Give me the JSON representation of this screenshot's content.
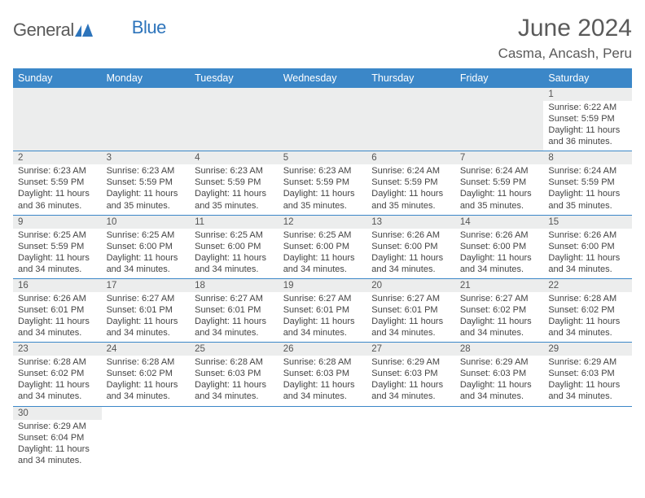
{
  "logo": {
    "general": "General",
    "blue": "Blue"
  },
  "title": "June 2024",
  "location": "Casma, Ancash, Peru",
  "days_of_week": [
    "Sunday",
    "Monday",
    "Tuesday",
    "Wednesday",
    "Thursday",
    "Friday",
    "Saturday"
  ],
  "colors": {
    "header_bg": "#3b87c8",
    "header_text": "#ffffff",
    "daynum_bg": "#eceded",
    "border": "#3b87c8",
    "title_text": "#5a5a5a",
    "body_text": "#444444",
    "logo_blue": "#2d74bb",
    "logo_gray": "#5a5a5a"
  },
  "typography": {
    "title_fontsize": 30,
    "location_fontsize": 17,
    "dayhead_fontsize": 12.5,
    "daynum_fontsize": 11.5,
    "content_fontsize": 11
  },
  "layout": {
    "first_day_column": 6,
    "total_days": 30
  },
  "entries": {
    "1": {
      "sunrise": "Sunrise: 6:22 AM",
      "sunset": "Sunset: 5:59 PM",
      "d1": "Daylight: 11 hours",
      "d2": "and 36 minutes."
    },
    "2": {
      "sunrise": "Sunrise: 6:23 AM",
      "sunset": "Sunset: 5:59 PM",
      "d1": "Daylight: 11 hours",
      "d2": "and 36 minutes."
    },
    "3": {
      "sunrise": "Sunrise: 6:23 AM",
      "sunset": "Sunset: 5:59 PM",
      "d1": "Daylight: 11 hours",
      "d2": "and 35 minutes."
    },
    "4": {
      "sunrise": "Sunrise: 6:23 AM",
      "sunset": "Sunset: 5:59 PM",
      "d1": "Daylight: 11 hours",
      "d2": "and 35 minutes."
    },
    "5": {
      "sunrise": "Sunrise: 6:23 AM",
      "sunset": "Sunset: 5:59 PM",
      "d1": "Daylight: 11 hours",
      "d2": "and 35 minutes."
    },
    "6": {
      "sunrise": "Sunrise: 6:24 AM",
      "sunset": "Sunset: 5:59 PM",
      "d1": "Daylight: 11 hours",
      "d2": "and 35 minutes."
    },
    "7": {
      "sunrise": "Sunrise: 6:24 AM",
      "sunset": "Sunset: 5:59 PM",
      "d1": "Daylight: 11 hours",
      "d2": "and 35 minutes."
    },
    "8": {
      "sunrise": "Sunrise: 6:24 AM",
      "sunset": "Sunset: 5:59 PM",
      "d1": "Daylight: 11 hours",
      "d2": "and 35 minutes."
    },
    "9": {
      "sunrise": "Sunrise: 6:25 AM",
      "sunset": "Sunset: 5:59 PM",
      "d1": "Daylight: 11 hours",
      "d2": "and 34 minutes."
    },
    "10": {
      "sunrise": "Sunrise: 6:25 AM",
      "sunset": "Sunset: 6:00 PM",
      "d1": "Daylight: 11 hours",
      "d2": "and 34 minutes."
    },
    "11": {
      "sunrise": "Sunrise: 6:25 AM",
      "sunset": "Sunset: 6:00 PM",
      "d1": "Daylight: 11 hours",
      "d2": "and 34 minutes."
    },
    "12": {
      "sunrise": "Sunrise: 6:25 AM",
      "sunset": "Sunset: 6:00 PM",
      "d1": "Daylight: 11 hours",
      "d2": "and 34 minutes."
    },
    "13": {
      "sunrise": "Sunrise: 6:26 AM",
      "sunset": "Sunset: 6:00 PM",
      "d1": "Daylight: 11 hours",
      "d2": "and 34 minutes."
    },
    "14": {
      "sunrise": "Sunrise: 6:26 AM",
      "sunset": "Sunset: 6:00 PM",
      "d1": "Daylight: 11 hours",
      "d2": "and 34 minutes."
    },
    "15": {
      "sunrise": "Sunrise: 6:26 AM",
      "sunset": "Sunset: 6:00 PM",
      "d1": "Daylight: 11 hours",
      "d2": "and 34 minutes."
    },
    "16": {
      "sunrise": "Sunrise: 6:26 AM",
      "sunset": "Sunset: 6:01 PM",
      "d1": "Daylight: 11 hours",
      "d2": "and 34 minutes."
    },
    "17": {
      "sunrise": "Sunrise: 6:27 AM",
      "sunset": "Sunset: 6:01 PM",
      "d1": "Daylight: 11 hours",
      "d2": "and 34 minutes."
    },
    "18": {
      "sunrise": "Sunrise: 6:27 AM",
      "sunset": "Sunset: 6:01 PM",
      "d1": "Daylight: 11 hours",
      "d2": "and 34 minutes."
    },
    "19": {
      "sunrise": "Sunrise: 6:27 AM",
      "sunset": "Sunset: 6:01 PM",
      "d1": "Daylight: 11 hours",
      "d2": "and 34 minutes."
    },
    "20": {
      "sunrise": "Sunrise: 6:27 AM",
      "sunset": "Sunset: 6:01 PM",
      "d1": "Daylight: 11 hours",
      "d2": "and 34 minutes."
    },
    "21": {
      "sunrise": "Sunrise: 6:27 AM",
      "sunset": "Sunset: 6:02 PM",
      "d1": "Daylight: 11 hours",
      "d2": "and 34 minutes."
    },
    "22": {
      "sunrise": "Sunrise: 6:28 AM",
      "sunset": "Sunset: 6:02 PM",
      "d1": "Daylight: 11 hours",
      "d2": "and 34 minutes."
    },
    "23": {
      "sunrise": "Sunrise: 6:28 AM",
      "sunset": "Sunset: 6:02 PM",
      "d1": "Daylight: 11 hours",
      "d2": "and 34 minutes."
    },
    "24": {
      "sunrise": "Sunrise: 6:28 AM",
      "sunset": "Sunset: 6:02 PM",
      "d1": "Daylight: 11 hours",
      "d2": "and 34 minutes."
    },
    "25": {
      "sunrise": "Sunrise: 6:28 AM",
      "sunset": "Sunset: 6:03 PM",
      "d1": "Daylight: 11 hours",
      "d2": "and 34 minutes."
    },
    "26": {
      "sunrise": "Sunrise: 6:28 AM",
      "sunset": "Sunset: 6:03 PM",
      "d1": "Daylight: 11 hours",
      "d2": "and 34 minutes."
    },
    "27": {
      "sunrise": "Sunrise: 6:29 AM",
      "sunset": "Sunset: 6:03 PM",
      "d1": "Daylight: 11 hours",
      "d2": "and 34 minutes."
    },
    "28": {
      "sunrise": "Sunrise: 6:29 AM",
      "sunset": "Sunset: 6:03 PM",
      "d1": "Daylight: 11 hours",
      "d2": "and 34 minutes."
    },
    "29": {
      "sunrise": "Sunrise: 6:29 AM",
      "sunset": "Sunset: 6:03 PM",
      "d1": "Daylight: 11 hours",
      "d2": "and 34 minutes."
    },
    "30": {
      "sunrise": "Sunrise: 6:29 AM",
      "sunset": "Sunset: 6:04 PM",
      "d1": "Daylight: 11 hours",
      "d2": "and 34 minutes."
    }
  }
}
